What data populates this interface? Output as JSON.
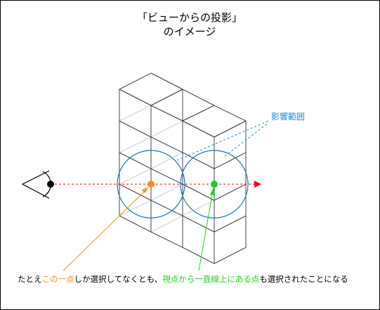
{
  "title": {
    "line1": "「ビューからの投影」",
    "line2": "のイメージ"
  },
  "callout_label": "影響範囲",
  "caption": {
    "part1": "たとえ",
    "highlight1": "この一点",
    "part2": "しか選択してなくとも、",
    "highlight2": "視点から一直線上にある点",
    "part3": "も選択されたことになる"
  },
  "colors": {
    "border": "#000000",
    "cube_edge": "#444444",
    "cube_hidden": "#cccccc",
    "ray": "#ff0000",
    "circle": "#1a76c4",
    "callout_text": "#1a8fe0",
    "orange": "#ff8c1a",
    "green": "#1ad51a",
    "eye": "#000000"
  }
}
